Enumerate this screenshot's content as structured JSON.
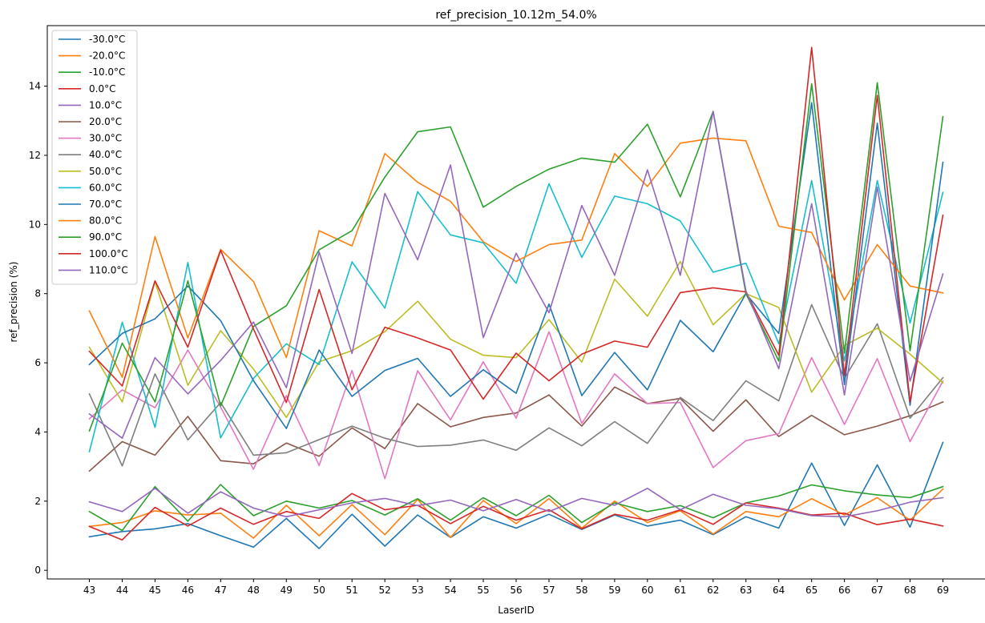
{
  "chart_data": {
    "type": "line",
    "title": "ref_precision_10.12m_54.0%",
    "xlabel": "LaserID",
    "ylabel": "ref_precision (%)",
    "x": [
      43,
      44,
      45,
      46,
      47,
      48,
      49,
      50,
      51,
      52,
      53,
      54,
      55,
      56,
      57,
      58,
      59,
      60,
      61,
      62,
      63,
      64,
      65,
      66,
      67,
      68,
      69
    ],
    "ylim": [
      -0.25,
      15.75
    ],
    "yticks": [
      0,
      2,
      4,
      6,
      8,
      10,
      12,
      14
    ],
    "legend_position": "upper-left",
    "grid": false,
    "series": [
      {
        "name": "-30.0°C",
        "color": "#1f77b4",
        "values": [
          0.97,
          1.12,
          1.2,
          1.35,
          1.0,
          0.67,
          1.5,
          0.63,
          1.62,
          0.7,
          1.6,
          0.95,
          1.55,
          1.22,
          1.62,
          1.18,
          1.6,
          1.28,
          1.45,
          1.03,
          1.55,
          1.22,
          3.1,
          1.3,
          3.05,
          1.25,
          3.7
        ]
      },
      {
        "name": "-20.0°C",
        "color": "#ff7f0e",
        "values": [
          1.27,
          1.38,
          1.72,
          1.6,
          1.65,
          0.93,
          1.88,
          1.0,
          1.9,
          1.03,
          2.05,
          0.95,
          2.02,
          1.35,
          2.07,
          1.22,
          2.0,
          1.38,
          1.72,
          1.05,
          1.7,
          1.55,
          2.07,
          1.6,
          2.1,
          1.45,
          2.35
        ]
      },
      {
        "name": "-10.0°C",
        "color": "#2ca02c",
        "values": [
          1.7,
          1.15,
          2.42,
          1.42,
          2.48,
          1.58,
          2.0,
          1.8,
          2.02,
          1.6,
          2.07,
          1.45,
          2.1,
          1.58,
          2.17,
          1.38,
          1.95,
          1.7,
          1.87,
          1.52,
          1.95,
          2.15,
          2.47,
          2.3,
          2.18,
          2.1,
          2.42
        ]
      },
      {
        "name": "0.0°C",
        "color": "#d62728",
        "values": [
          1.27,
          0.88,
          1.82,
          1.28,
          1.8,
          1.33,
          1.7,
          1.5,
          2.22,
          1.75,
          1.88,
          1.35,
          1.85,
          1.45,
          1.75,
          1.2,
          1.62,
          1.45,
          1.75,
          1.33,
          1.95,
          1.8,
          1.6,
          1.65,
          1.32,
          1.48,
          1.28
        ]
      },
      {
        "name": "10.0°C",
        "color": "#9467bd",
        "values": [
          1.98,
          1.7,
          2.37,
          1.65,
          2.27,
          1.8,
          1.55,
          1.75,
          1.95,
          2.08,
          1.87,
          2.03,
          1.72,
          2.05,
          1.7,
          2.08,
          1.88,
          2.37,
          1.75,
          2.2,
          1.88,
          1.78,
          1.58,
          1.55,
          1.72,
          1.97,
          2.1
        ]
      },
      {
        "name": "20.0°C",
        "color": "#8c564b",
        "values": [
          2.87,
          3.72,
          3.33,
          4.45,
          3.17,
          3.08,
          3.68,
          3.3,
          4.12,
          3.52,
          4.82,
          4.15,
          4.42,
          4.55,
          5.07,
          4.17,
          5.3,
          4.82,
          4.97,
          4.02,
          4.93,
          3.87,
          4.48,
          3.92,
          4.17,
          4.47,
          4.87
        ]
      },
      {
        "name": "30.0°C",
        "color": "#e377c2",
        "values": [
          4.38,
          5.22,
          4.7,
          6.37,
          4.72,
          2.92,
          5.05,
          3.03,
          5.78,
          2.65,
          5.77,
          4.35,
          6.03,
          4.4,
          6.9,
          4.25,
          5.68,
          4.82,
          4.85,
          2.97,
          3.75,
          3.95,
          6.15,
          4.22,
          6.12,
          3.72,
          5.47
        ]
      },
      {
        "name": "40.0°C",
        "color": "#7f7f7f",
        "values": [
          5.1,
          3.02,
          5.68,
          3.77,
          4.85,
          3.33,
          3.4,
          3.78,
          4.17,
          3.82,
          3.58,
          3.62,
          3.77,
          3.47,
          4.12,
          3.6,
          4.3,
          3.67,
          5.0,
          4.33,
          5.48,
          4.9,
          7.68,
          5.55,
          7.13,
          4.4,
          5.57
        ]
      },
      {
        "name": "50.0°C",
        "color": "#bcbd22",
        "values": [
          6.45,
          4.87,
          8.35,
          5.35,
          6.93,
          5.82,
          4.42,
          6.03,
          6.35,
          6.9,
          7.78,
          6.68,
          6.22,
          6.15,
          7.25,
          6.02,
          8.42,
          7.35,
          8.93,
          7.1,
          8.0,
          7.6,
          5.15,
          6.5,
          7.0,
          6.25,
          5.42
        ]
      },
      {
        "name": "60.0°C",
        "color": "#17becf",
        "values": [
          3.43,
          7.17,
          4.13,
          8.9,
          3.83,
          5.55,
          6.55,
          5.95,
          8.92,
          7.58,
          10.95,
          9.7,
          9.47,
          8.3,
          11.18,
          9.05,
          10.82,
          10.6,
          10.1,
          8.62,
          8.88,
          6.55,
          11.27,
          6.05,
          11.27,
          7.15,
          10.93
        ]
      },
      {
        "name": "70.0°C",
        "color": "#1f77b4",
        "values": [
          5.95,
          6.85,
          7.27,
          8.22,
          7.22,
          5.48,
          4.1,
          6.37,
          5.03,
          5.78,
          6.13,
          5.03,
          5.8,
          5.12,
          7.7,
          5.05,
          6.3,
          5.22,
          7.23,
          6.32,
          8.0,
          6.85,
          13.52,
          5.37,
          12.93,
          4.77,
          11.8
        ]
      },
      {
        "name": "80.0°C",
        "color": "#ff7f0e",
        "values": [
          7.5,
          5.58,
          9.65,
          6.72,
          9.28,
          8.35,
          6.15,
          9.82,
          9.38,
          12.05,
          11.22,
          10.67,
          9.5,
          8.93,
          9.42,
          9.55,
          12.05,
          11.1,
          12.35,
          12.5,
          12.42,
          9.95,
          9.77,
          7.82,
          9.42,
          8.22,
          8.02
        ]
      },
      {
        "name": "90.0°C",
        "color": "#2ca02c",
        "values": [
          4.03,
          6.57,
          4.87,
          8.37,
          4.75,
          7.05,
          7.65,
          9.27,
          9.82,
          11.37,
          12.68,
          12.82,
          10.5,
          11.1,
          11.6,
          11.92,
          11.8,
          12.9,
          10.8,
          13.27,
          8.0,
          6.05,
          14.07,
          6.28,
          14.1,
          6.35,
          13.12
        ]
      },
      {
        "name": "100.0°C",
        "color": "#d62728",
        "values": [
          6.33,
          5.33,
          8.37,
          6.45,
          9.25,
          6.98,
          4.85,
          8.12,
          5.22,
          7.03,
          6.72,
          6.37,
          4.95,
          6.28,
          5.48,
          6.25,
          6.63,
          6.45,
          8.03,
          8.17,
          8.05,
          6.22,
          15.12,
          5.63,
          13.73,
          4.87,
          10.27
        ]
      },
      {
        "name": "110.0°C",
        "color": "#9467bd",
        "values": [
          4.52,
          3.82,
          6.15,
          5.1,
          6.07,
          7.18,
          5.28,
          9.2,
          6.27,
          10.9,
          8.98,
          11.72,
          6.73,
          9.17,
          7.45,
          10.55,
          8.53,
          11.58,
          8.53,
          13.27,
          8.08,
          5.83,
          10.6,
          5.07,
          11.08,
          5.47,
          8.57
        ]
      }
    ]
  }
}
